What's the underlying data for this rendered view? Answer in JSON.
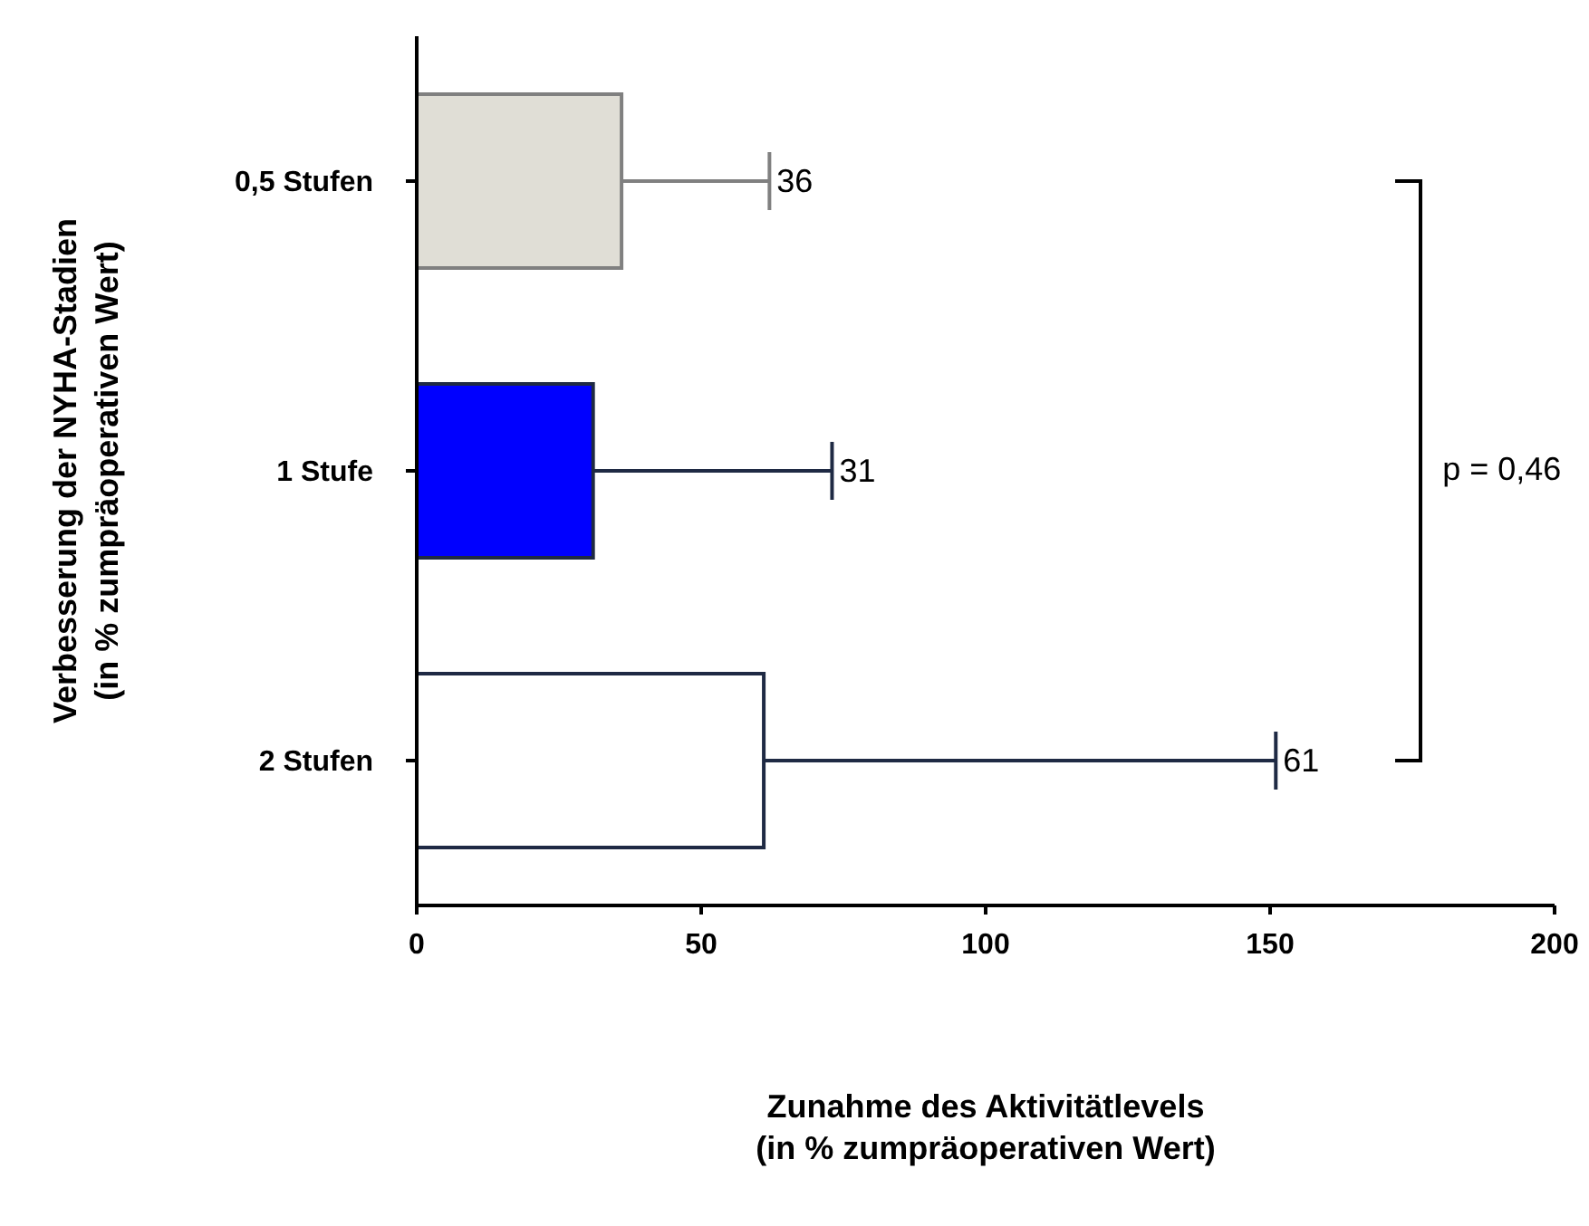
{
  "chart_data": {
    "type": "bar",
    "orientation": "horizontal",
    "categories": [
      "0,5 Stufen",
      "1 Stufe",
      "2 Stufen"
    ],
    "values": [
      36,
      31,
      61
    ],
    "colors": [
      "#e0ded6",
      "#0000ff",
      "#ffffff"
    ],
    "errors": [
      [
        36,
        62
      ],
      [
        31,
        73
      ],
      [
        61,
        151
      ]
    ],
    "xlim": [
      0,
      200
    ],
    "xticks": [
      0,
      50,
      100,
      150,
      200
    ],
    "xlabel": "Zunahme des Aktivitätlevels\n(in % zumpräoperativen Wert)",
    "ylabel": "Verbesserung der NYHA-Stadien\n(in % zumpräoperativen Wert)",
    "annotations": [
      "p = 0,46",
      {
        "text": "36",
        "x": 62,
        "y": "0,5 Stufen"
      },
      {
        "text": "31",
        "x": 73,
        "y": "1 Stufe"
      },
      {
        "text": "61",
        "x": 151,
        "y": "2 Stufen"
      }
    ],
    "grid": false,
    "legend": false
  }
}
